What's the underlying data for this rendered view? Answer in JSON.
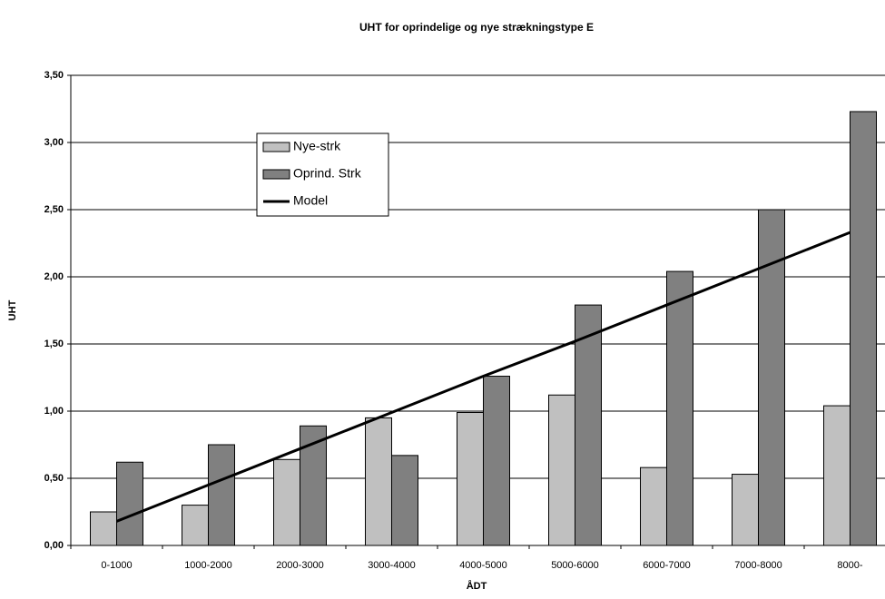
{
  "chart_data": {
    "type": "bar",
    "title": "UHT for oprindelige og nye strækningstype E",
    "x_label": "ÅDT",
    "y_label": "UHT",
    "categories": [
      "0-1000",
      "1000-2000",
      "2000-3000",
      "3000-4000",
      "4000-5000",
      "5000-6000",
      "6000-7000",
      "7000-8000",
      "8000-"
    ],
    "series": [
      {
        "name": "Nye-strk",
        "color": "#c0c0c0",
        "values": [
          0.25,
          0.3,
          0.64,
          0.95,
          0.99,
          1.12,
          0.58,
          0.53,
          1.04
        ]
      },
      {
        "name": "Oprind. Strk",
        "color": "#808080",
        "values": [
          0.62,
          0.75,
          0.89,
          0.67,
          1.26,
          1.79,
          2.04,
          2.5,
          3.23
        ]
      },
      {
        "name": "Model",
        "color": "#000000",
        "type": "line",
        "values": [
          0.18,
          0.45,
          0.72,
          0.99,
          1.26,
          1.52,
          1.79,
          2.06,
          2.33
        ]
      }
    ],
    "ylim": [
      0,
      3.5
    ],
    "yticks": [
      {
        "value": 0,
        "label": "0,00"
      },
      {
        "value": 0.5,
        "label": "0,50"
      },
      {
        "value": 1,
        "label": "1,00"
      },
      {
        "value": 1.5,
        "label": "1,50"
      },
      {
        "value": 2,
        "label": "2,00"
      },
      {
        "value": 2.5,
        "label": "2,50"
      },
      {
        "value": 3,
        "label": "3,00"
      },
      {
        "value": 3.5,
        "label": "3,50"
      }
    ],
    "grid": true,
    "legend": "upper left"
  }
}
